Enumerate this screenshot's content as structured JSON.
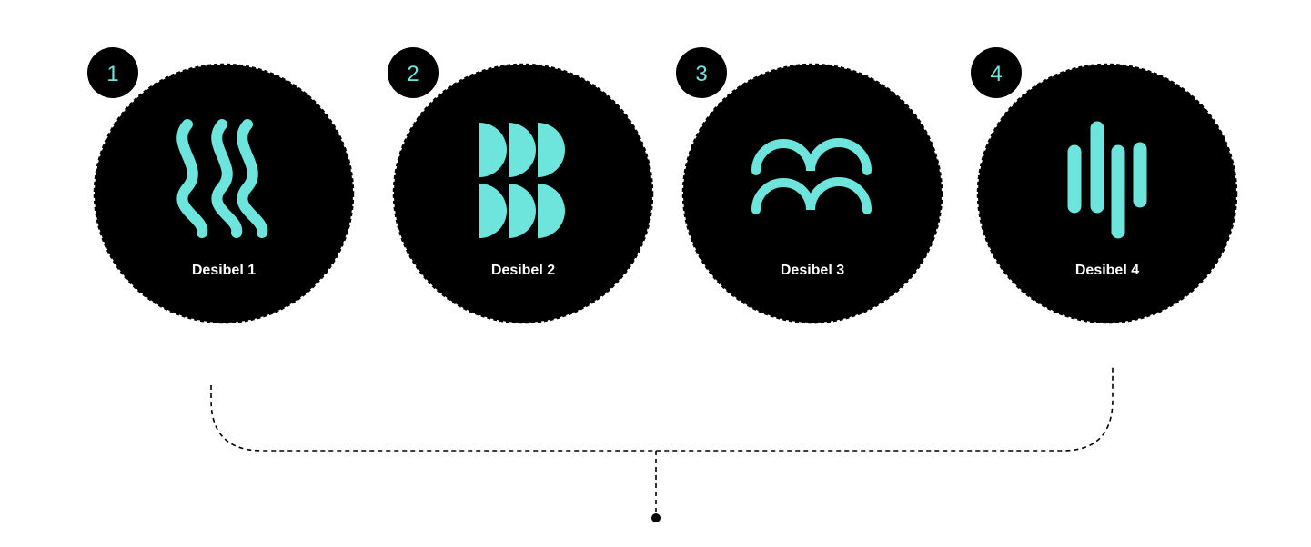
{
  "colors": {
    "background": "#ffffff",
    "circle_fill": "#000000",
    "circle_border": "#000000",
    "accent": "#6de4dc",
    "label_text": "#ffffff",
    "connector": "#000000"
  },
  "options": [
    {
      "number": "1",
      "label": "Desibel 1",
      "icon": "wavy-lines-icon"
    },
    {
      "number": "2",
      "label": "Desibel 2",
      "icon": "half-circles-icon"
    },
    {
      "number": "3",
      "label": "Desibel 3",
      "icon": "double-arches-icon"
    },
    {
      "number": "4",
      "label": "Desibel 4",
      "icon": "sound-bars-icon"
    }
  ]
}
